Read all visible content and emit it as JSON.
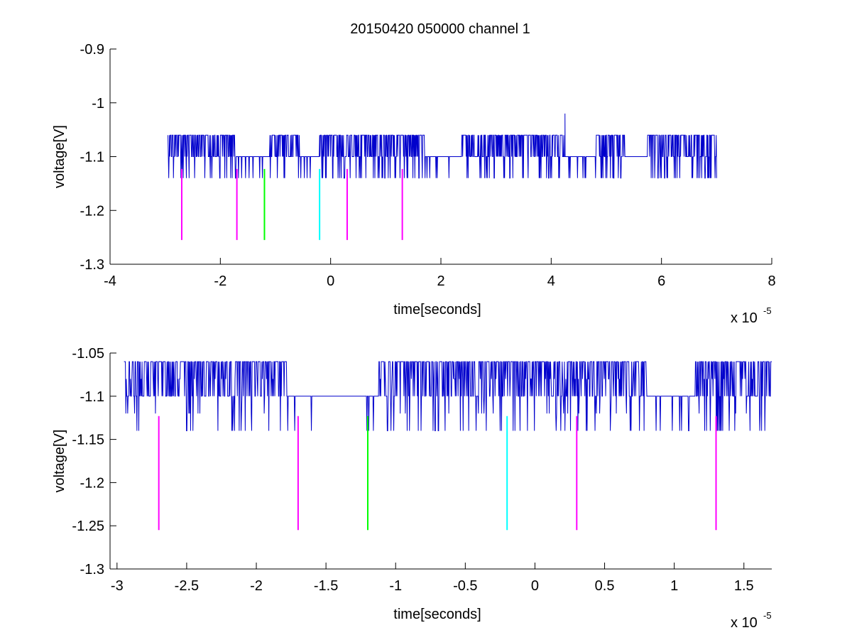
{
  "figure": {
    "title": "20150420 050000 channel 1"
  },
  "chart_data": [
    {
      "type": "line",
      "title": "20150420 050000 channel 1",
      "xlabel": "time[seconds]",
      "ylabel": "voltage[V]",
      "x_exponent_label": "x 10",
      "x_exponent": "-5",
      "xlim": [
        -4,
        8
      ],
      "ylim": [
        -1.3,
        -0.9
      ],
      "x_ticks": [
        -4,
        -2,
        0,
        2,
        4,
        6,
        8
      ],
      "x_tick_labels": [
        "-4",
        "-2",
        "0",
        "2",
        "4",
        "6",
        "8"
      ],
      "y_ticks": [
        -1.3,
        -1.2,
        -1.1,
        -1.0,
        -0.9
      ],
      "y_tick_labels": [
        "-1.3",
        "-1.2",
        "-1.1",
        "-1",
        "-0.9"
      ],
      "grid": false,
      "trace": {
        "color": "#0000cc",
        "x_range": [
          -2.95,
          7.0
        ],
        "levels": [
          -1.14,
          -1.1,
          -1.06
        ],
        "baseline": -1.1,
        "spike": {
          "x": 4.25,
          "y": -1.02
        }
      },
      "markers": [
        {
          "x": -2.7,
          "y_top": -1.123,
          "y_bottom": -1.255,
          "color": "#ff00ff"
        },
        {
          "x": -1.7,
          "y_top": -1.123,
          "y_bottom": -1.255,
          "color": "#ff00ff"
        },
        {
          "x": -1.2,
          "y_top": -1.123,
          "y_bottom": -1.255,
          "color": "#00ff00"
        },
        {
          "x": -0.2,
          "y_top": -1.123,
          "y_bottom": -1.255,
          "color": "#00ffff"
        },
        {
          "x": 0.3,
          "y_top": -1.123,
          "y_bottom": -1.255,
          "color": "#ff00ff"
        },
        {
          "x": 1.3,
          "y_top": -1.123,
          "y_bottom": -1.255,
          "color": "#ff00ff"
        }
      ]
    },
    {
      "type": "line",
      "title": "",
      "xlabel": "time[seconds]",
      "ylabel": "voltage[V]",
      "x_exponent_label": "x 10",
      "x_exponent": "-5",
      "xlim": [
        -3.05,
        1.7
      ],
      "ylim": [
        -1.3,
        -1.05
      ],
      "x_ticks": [
        -3,
        -2.5,
        -2,
        -1.5,
        -1,
        -0.5,
        0,
        0.5,
        1,
        1.5
      ],
      "x_tick_labels": [
        "-3",
        "-2.5",
        "-2",
        "-1.5",
        "-1",
        "-0.5",
        "0",
        "0.5",
        "1",
        "1.5"
      ],
      "y_ticks": [
        -1.3,
        -1.25,
        -1.2,
        -1.15,
        -1.1,
        -1.05
      ],
      "y_tick_labels": [
        "-1.3",
        "-1.25",
        "-1.2",
        "-1.15",
        "-1.1",
        "-1.05"
      ],
      "grid": false,
      "trace": {
        "color": "#0000cc",
        "x_range": [
          -2.95,
          1.7
        ],
        "levels": [
          -1.14,
          -1.12,
          -1.1,
          -1.08,
          -1.06
        ],
        "baseline": -1.1
      },
      "markers": [
        {
          "x": -2.7,
          "y_top": -1.123,
          "y_bottom": -1.255,
          "color": "#ff00ff"
        },
        {
          "x": -1.7,
          "y_top": -1.123,
          "y_bottom": -1.255,
          "color": "#ff00ff"
        },
        {
          "x": -1.2,
          "y_top": -1.123,
          "y_bottom": -1.255,
          "color": "#00ff00"
        },
        {
          "x": -0.2,
          "y_top": -1.123,
          "y_bottom": -1.255,
          "color": "#00ffff"
        },
        {
          "x": 0.3,
          "y_top": -1.123,
          "y_bottom": -1.255,
          "color": "#ff00ff"
        },
        {
          "x": 1.3,
          "y_top": -1.123,
          "y_bottom": -1.255,
          "color": "#ff00ff"
        }
      ]
    }
  ]
}
